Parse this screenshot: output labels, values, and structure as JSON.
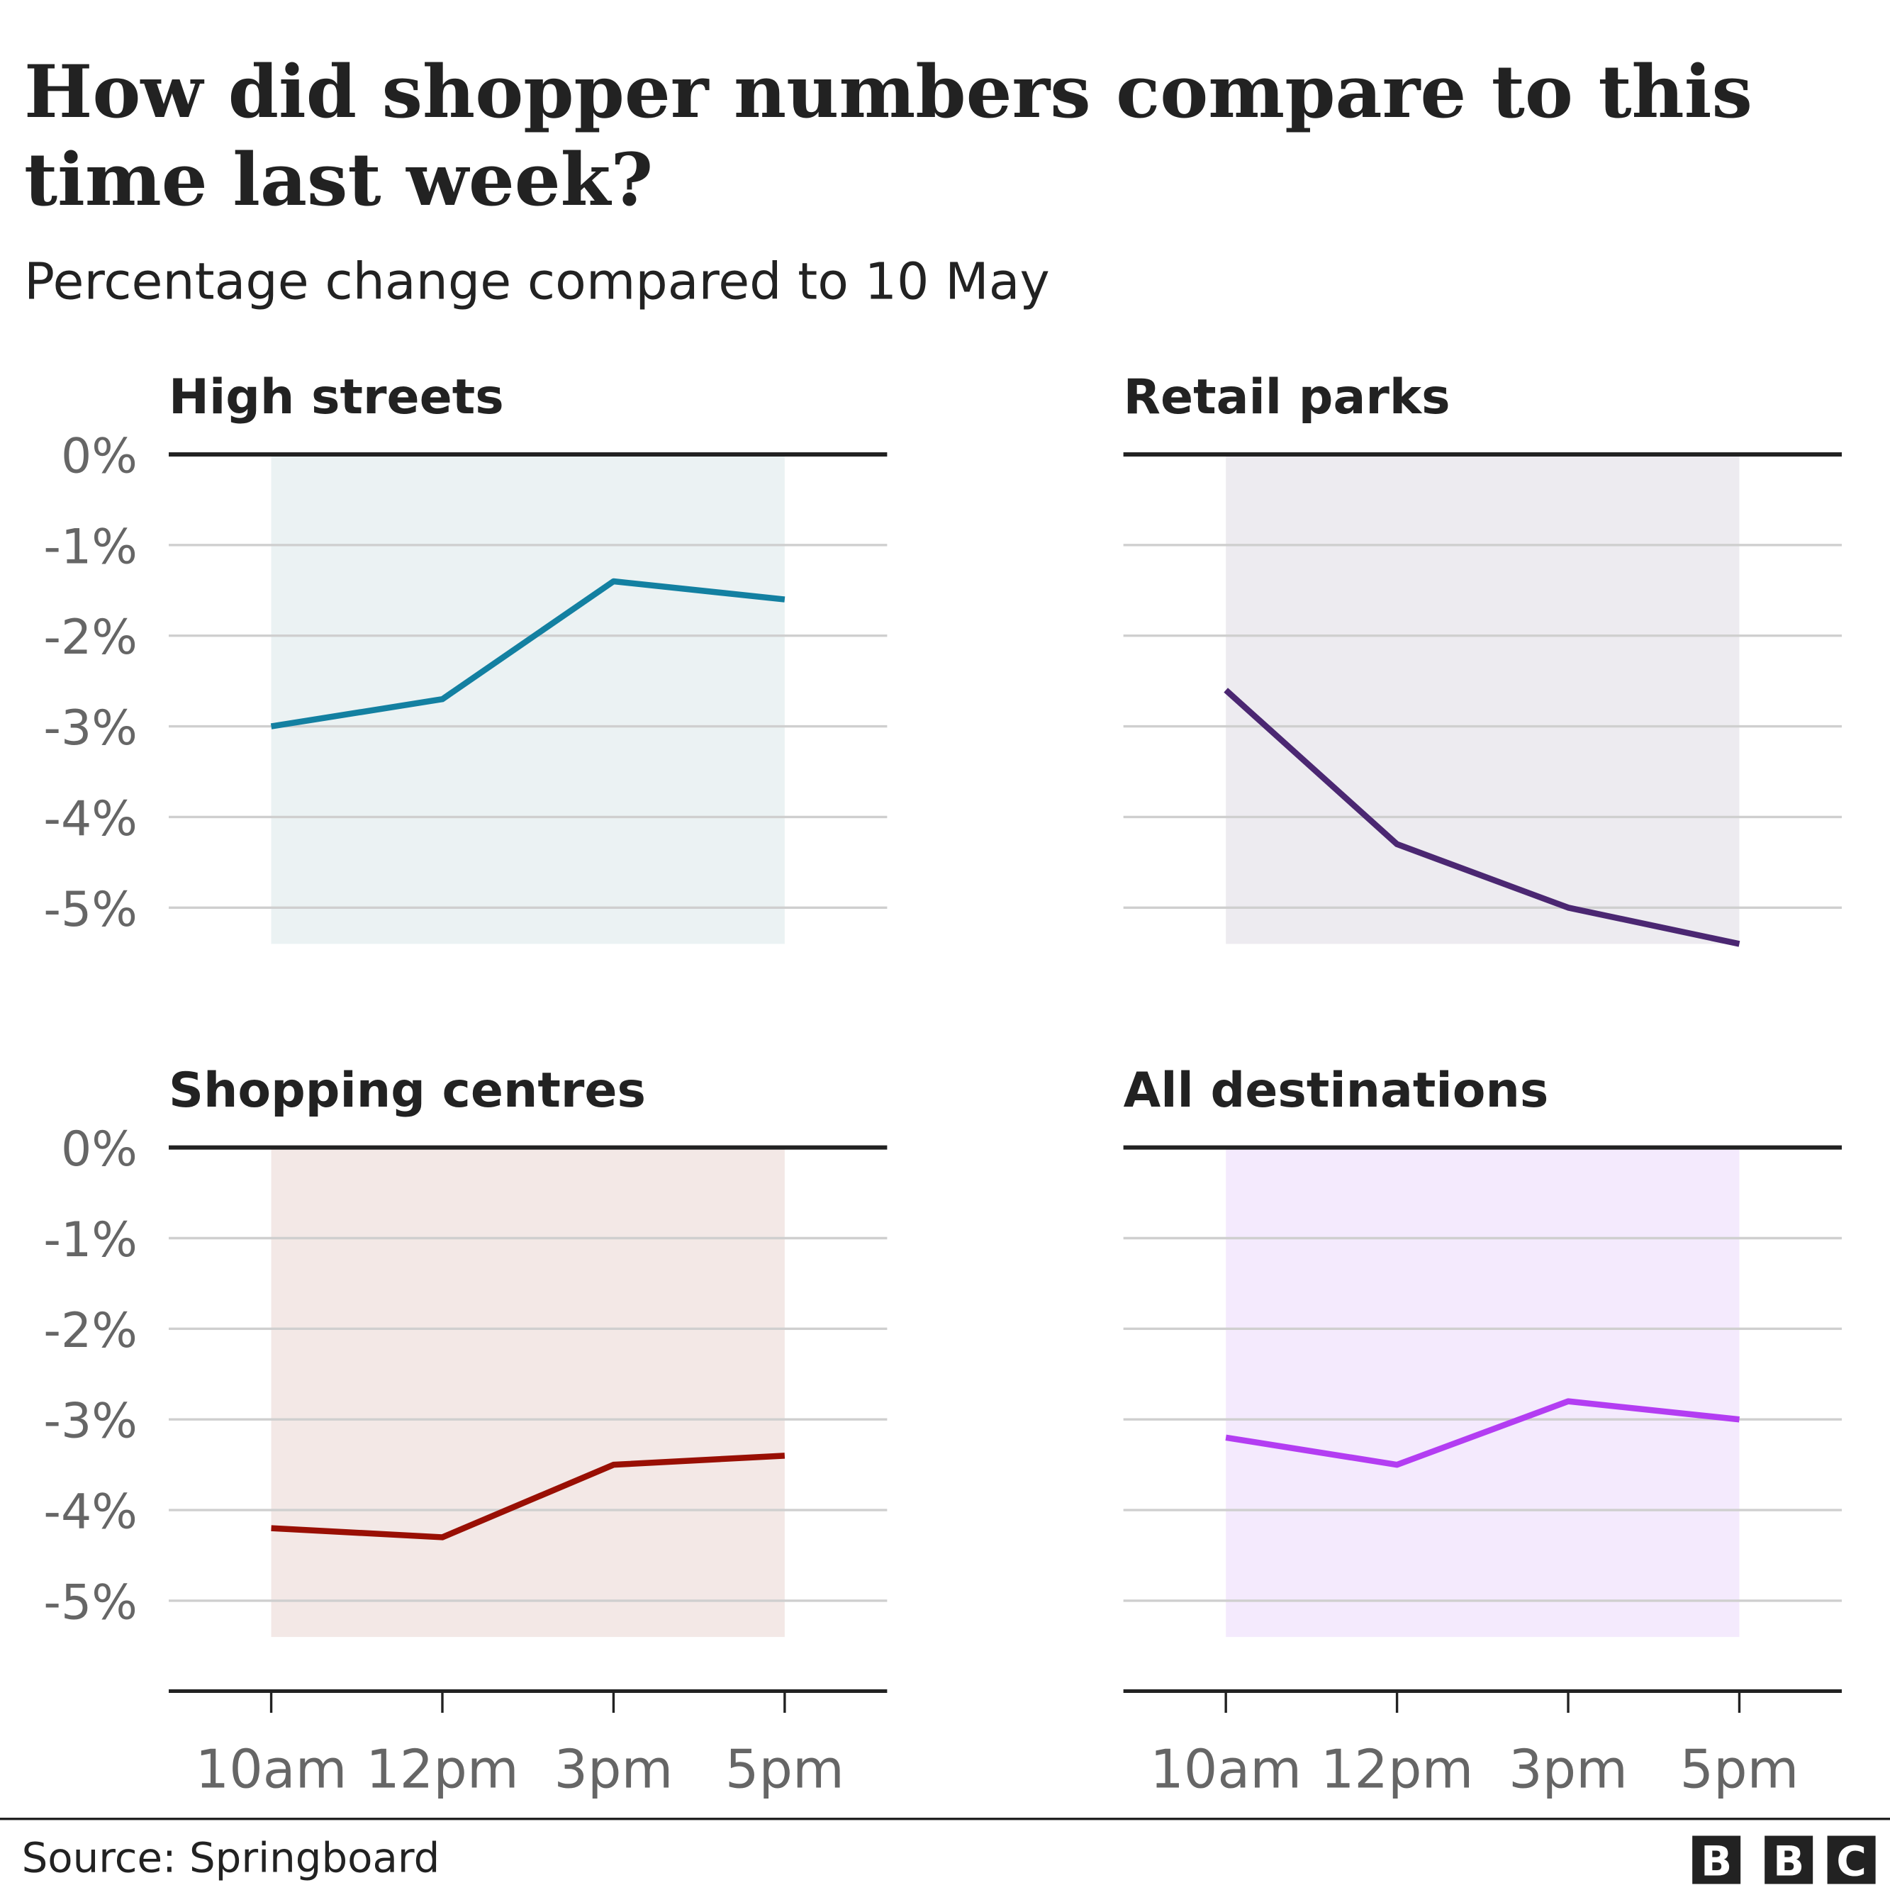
{
  "title_lines": [
    "How did shopper numbers compare to this",
    "time last week?"
  ],
  "subtitle": "Percentage change compared to 10 May",
  "source": "Source: Springboard",
  "logo": "BBC",
  "chart_data": [
    {
      "type": "line",
      "title": "High streets",
      "categories": [
        "10am",
        "12pm",
        "3pm",
        "5pm"
      ],
      "values": [
        -3.0,
        -2.7,
        -1.4,
        -1.6
      ],
      "color": "#1380a1",
      "fill": "#ebf2f3",
      "ylim": [
        -6,
        0
      ],
      "yticks": [
        "0%",
        "-1%",
        "-2%",
        "-3%",
        "-4%",
        "-5%"
      ],
      "grid": true
    },
    {
      "type": "line",
      "title": "Retail parks",
      "categories": [
        "10am",
        "12pm",
        "3pm",
        "5pm"
      ],
      "values": [
        -2.6,
        -4.3,
        -5.0,
        -5.4
      ],
      "color": "#4b2772",
      "fill": "#edebf0",
      "ylim": [
        -6,
        0
      ],
      "grid": true
    },
    {
      "type": "line",
      "title": "Shopping centres",
      "categories": [
        "10am",
        "12pm",
        "3pm",
        "5pm"
      ],
      "values": [
        -4.2,
        -4.3,
        -3.5,
        -3.4
      ],
      "color": "#990f04",
      "fill": "#f3e8e6",
      "ylim": [
        -6,
        0
      ],
      "yticks": [
        "0%",
        "-1%",
        "-2%",
        "-3%",
        "-4%",
        "-5%"
      ],
      "grid": true
    },
    {
      "type": "line",
      "title": "All destinations",
      "categories": [
        "10am",
        "12pm",
        "3pm",
        "5pm"
      ],
      "values": [
        -3.2,
        -3.5,
        -2.8,
        -3.0
      ],
      "color": "#b33df2",
      "fill": "#f4eafd",
      "ylim": [
        -6,
        0
      ],
      "grid": true
    }
  ]
}
